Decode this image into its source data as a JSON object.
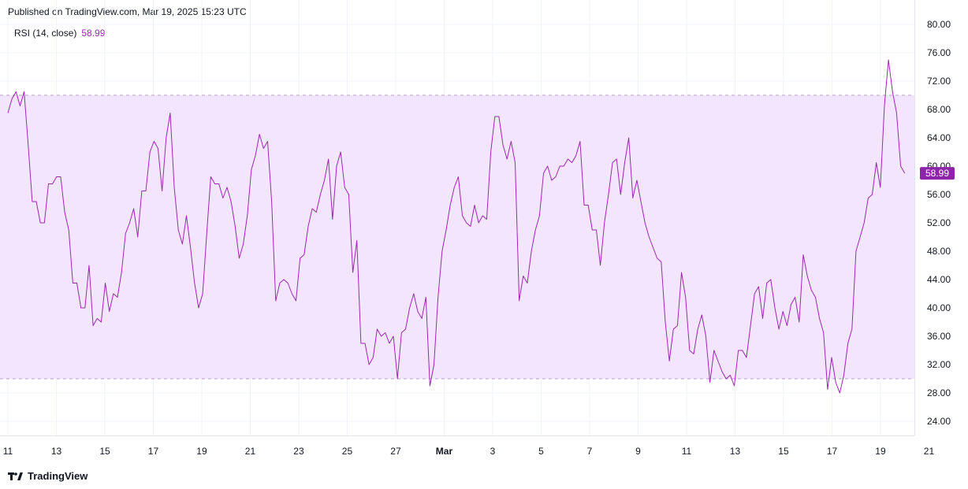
{
  "header": {
    "published": "Published on TradingView.com, Mar 19, 2025 15:23 UTC"
  },
  "legend": {
    "indicator": "RSI (14, close)",
    "value": "58.99"
  },
  "footer": {
    "brand": "TradingView"
  },
  "colors": {
    "line": "#9c27b0",
    "band_fill": "#f3e5fd",
    "label_bg": "#8e24aa",
    "grid": "#f0f3fa",
    "band_line": "#b39ac7"
  },
  "chart_data": {
    "type": "line",
    "title": "RSI (14, close)",
    "last_value": 58.99,
    "last_value_label": "58.99",
    "ylim": [
      22,
      80
    ],
    "xlim": [
      0,
      187
    ],
    "y_ticks": [
      24,
      28,
      32,
      36,
      40,
      44,
      48,
      52,
      56,
      60,
      64,
      68,
      72,
      76,
      80
    ],
    "y_tick_labels": [
      "24.00",
      "28.00",
      "32.00",
      "36.00",
      "40.00",
      "44.00",
      "48.00",
      "52.00",
      "56.00",
      "60.00",
      "64.00",
      "68.00",
      "72.00",
      "76.00",
      "80.00"
    ],
    "band": {
      "upper": 70,
      "lower": 30
    },
    "x_ticks": [
      {
        "x": 0,
        "label": "11"
      },
      {
        "x": 10,
        "label": "13"
      },
      {
        "x": 20,
        "label": "15"
      },
      {
        "x": 30,
        "label": "17"
      },
      {
        "x": 40,
        "label": "19"
      },
      {
        "x": 50,
        "label": "21"
      },
      {
        "x": 60,
        "label": "23"
      },
      {
        "x": 70,
        "label": "25"
      },
      {
        "x": 80,
        "label": "27"
      },
      {
        "x": 90,
        "label": "Mar"
      },
      {
        "x": 100,
        "label": "3"
      },
      {
        "x": 110,
        "label": "5"
      },
      {
        "x": 120,
        "label": "7"
      },
      {
        "x": 130,
        "label": "9"
      },
      {
        "x": 140,
        "label": "11"
      },
      {
        "x": 150,
        "label": "13"
      },
      {
        "x": 160,
        "label": "15"
      },
      {
        "x": 170,
        "label": "17"
      },
      {
        "x": 180,
        "label": "19"
      },
      {
        "x": 190,
        "label": "21"
      }
    ],
    "series": [
      {
        "values": [
          67.5,
          69.5,
          70.5,
          68.5,
          70.5,
          63,
          55,
          55,
          52,
          52,
          57.5,
          57.5,
          58.5,
          58.5,
          53.5,
          51,
          43.5,
          43.5,
          40,
          40,
          46,
          37.5,
          38.5,
          38,
          43.5,
          39.5,
          42,
          41.5,
          45,
          50.5,
          52,
          54,
          50,
          56.5,
          56.5,
          62,
          63.5,
          62.5,
          56.5,
          64,
          67.5,
          57,
          51,
          49,
          53,
          48.5,
          43.5,
          40,
          42,
          50.5,
          58.5,
          57.5,
          57.5,
          55.5,
          57,
          55,
          51.5,
          47,
          49,
          53,
          59.5,
          61.5,
          64.5,
          62.5,
          63.5,
          55,
          41,
          43.5,
          44,
          43.5,
          42,
          41,
          47,
          47.5,
          51.5,
          54,
          53.5,
          56,
          58,
          61,
          52.5,
          60,
          62,
          57,
          56,
          45,
          49.5,
          35,
          35,
          32,
          33,
          37,
          36,
          36.5,
          35,
          36,
          30,
          36.5,
          37,
          40,
          42,
          39.5,
          38.5,
          41.5,
          29,
          32,
          41.5,
          48,
          51,
          54.5,
          57,
          58.5,
          53,
          52,
          51.5,
          54.5,
          52,
          53,
          52.5,
          62,
          67,
          67,
          63,
          61,
          63.5,
          60.5,
          41,
          44.5,
          43.5,
          48,
          51,
          53,
          59,
          60,
          58,
          58.5,
          60,
          60,
          61,
          60.5,
          61.5,
          63.5,
          54.5,
          54.5,
          51,
          51,
          46,
          52,
          56,
          60.5,
          61,
          56,
          60.5,
          64,
          55.5,
          58,
          55,
          52,
          50,
          48.5,
          47,
          46.5,
          38,
          32.5,
          37,
          37.5,
          45,
          41.5,
          34,
          33.5,
          37,
          39,
          36,
          29.5,
          34,
          32.5,
          31,
          30,
          30.5,
          29,
          34,
          34,
          33,
          37.5,
          42,
          43,
          38.5,
          43.5,
          44,
          40,
          37,
          39.5,
          37.5,
          40.5,
          41.5,
          38,
          47.5,
          44.5,
          42.5,
          41.5,
          38.5,
          36.5,
          28.5,
          33,
          29.5,
          28,
          30.5,
          35,
          37,
          48,
          50,
          52,
          55.5,
          56,
          60.5,
          57,
          68.5,
          75,
          70.5,
          67.5,
          60,
          59
        ]
      }
    ]
  }
}
